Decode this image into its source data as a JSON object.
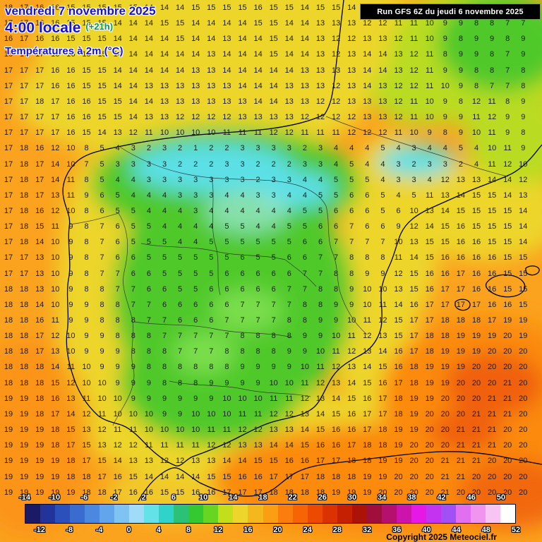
{
  "header": {
    "date": "vendredi 7 novembre 2025",
    "time": "4:00 locale",
    "offset": "(+21h)",
    "parameter": "Températures à 2m (°C)",
    "run_info": "Run GFS 6Z du jeudi 6 novembre 2025"
  },
  "footer": {
    "copyright": "Copyright 2025 Meteociel.fr"
  },
  "map": {
    "units": "°C",
    "palette": {
      "orange": "#FBA21E",
      "deeporange": "#FB8A10",
      "redorange": "#F0600A",
      "yellow": "#EDD52C",
      "yellowgreen": "#B9DC22",
      "green": "#4FC92C",
      "brightgreen": "#7ADE4C",
      "cyan": "#5BE0E6",
      "palecyan": "#9FE9E0",
      "coastline": "#000000",
      "border": "#222222"
    }
  },
  "grid": {
    "cols": 34,
    "rows": [
      "18 17 16 16 15 15 15 15 15 14 14 14 15 15 15 15 16 15 15 14 15 15 14 13 13 12 12 11 10 9 9 8 8 8",
      "17 17 16 16 15 15 15 14 14 14 15 15 14 14 14 14 15 15 14 14 13 13 13 12 12 11 11 10 9 9 8 8 7 7",
      "16 17 16 16 15 15 15 14 14 14 14 15 14 14 13 14 14 15 14 14 13 12 12 13 13 12 11 10 9 8 9 9 8 9",
      "16 17 17 16 16 15 15 14 14 14 14 14 14 13 14 14 14 15 14 14 13 12 13 14 14 13 12 11 8 9 9 8 7 9",
      "17 17 17 16 16 15 15 14 14 14 14 14 13 13 14 14 14 14 14 13 13 13 13 14 14 13 12 11 9 9 8 8 7 8",
      "17 17 17 16 16 15 15 14 14 13 13 13 13 13 13 14 14 14 13 13 13 12 13 14 13 12 12 11 10 9 8 7 7 8",
      "17 17 18 17 16 16 15 15 14 14 13 13 13 13 13 13 14 14 13 13 12 12 13 13 13 12 11 10 9 8 12 11 8 9",
      "17 17 17 17 16 16 15 15 14 13 13 12 12 12 12 13 13 13 13 12 12 12 12 13 13 12 11 10 9 9 11 12 9 9",
      "17 17 17 17 16 15 14 13 12 11 10 10 10 10 11 11 11 12 12 11 11 11 12 12 12 11 10 9 8 9 10 11 9 8",
      "17 18 16 12 10 8 5 4 3 2 3 2 1 2 2 3 3 3 3 2 3 4 4 4 5 4 3 4 4 5 4 10 11 9",
      "17 18 17 14 10 7 5 3 3 3 3 2 2 2 3 3 2 2 2 3 3 4 5 4 4 3 2 3 3 2 4 11 12 10",
      "17 18 17 14 11 8 5 4 4 3 3 3 3 3 3 3 2 3 3 4 4 5 5 5 4 3 3 4 12 13 13 14 14 12",
      "17 18 17 13 11 9 6 5 4 4 4 3 3 3 4 4 3 3 4 4 5 5 6 6 5 4 5 11 13 14 15 15 14 13",
      "17 18 16 12 10 8 6 5 5 4 4 4 3 4 4 4 4 4 4 5 5 6 6 6 5 6 10 13 14 15 15 15 15 14",
      "17 18 15 11 9 8 7 6 5 5 4 4 4 4 5 5 4 4 5 5 6 6 7 6 6 9 12 14 15 16 15 15 15 14",
      "17 18 14 10 9 8 7 6 5 5 5 4 4 5 5 5 5 5 5 6 6 7 7 7 7 10 13 15 15 16 16 15 15 14",
      "17 17 13 10 9 8 7 6 6 5 5 5 5 5 5 6 5 5 6 6 7 7 8 8 8 11 14 15 16 16 16 16 15 15",
      "17 17 13 10 9 8 7 7 6 6 5 5 5 5 6 6 6 6 6 7 7 8 8 9 9 12 15 16 16 17 16 16 15 15",
      "18 18 13 10 9 8 8 7 7 6 6 5 5 6 6 6 6 6 7 7 8 8 9 10 10 13 15 16 17 17 16 16 15 15",
      "18 18 14 10 9 9 8 8 7 7 6 6 6 6 6 7 7 7 7 8 8 9 9 10 11 14 16 17 17 17 17 16 16 15",
      "18 18 16 11 9 9 8 8 8 7 7 6 6 6 7 7 7 7 8 8 9 9 10 11 12 15 17 17 18 18 18 17 19 19",
      "18 18 17 12 10 9 9 8 8 8 7 7 7 7 7 8 8 8 8 9 9 10 11 12 13 15 17 18 18 19 19 19 20 19",
      "18 18 17 13 10 9 9 9 8 8 8 7 7 7 8 8 8 8 9 9 10 11 12 13 14 16 17 18 19 19 19 20 20 20",
      "18 18 18 14 11 10 9 9 9 8 8 8 8 8 8 9 9 9 9 10 11 12 13 14 15 16 18 19 19 19 20 20 20 20",
      "18 18 18 15 12 10 10 9 9 9 8 8 8 9 9 9 9 10 10 11 12 13 14 15 16 17 18 19 19 20 20 20 21 20",
      "19 19 18 16 13 11 10 10 9 9 9 9 9 9 10 10 10 11 11 12 13 14 15 16 17 18 19 19 20 20 20 21 21 20",
      "19 19 18 17 14 12 11 10 10 10 9 9 10 10 10 11 11 12 12 13 14 15 16 17 17 18 19 20 20 20 21 21 21 20",
      "19 19 19 18 15 13 12 11 11 10 10 10 10 11 11 12 12 13 13 14 15 16 16 17 18 19 19 20 20 21 21 21 20 20",
      "19 19 19 18 17 15 13 12 12 11 11 11 11 12 12 13 13 14 14 15 16 16 17 18 18 19 20 20 20 21 21 21 20 20",
      "19 19 19 19 18 17 15 14 13 13 12 12 13 13 14 14 15 15 16 16 17 17 18 18 19 19 20 20 21 21 21 20 20 20",
      "19 19 19 19 18 18 17 16 15 14 14 14 14 15 15 16 16 17 17 17 18 18 18 19 19 20 20 20 21 21 20 20 20 20",
      "19 19 19 19 19 18 18 17 16 16 15 15 16 16 17 17 17 18 18 18 18 19 19 19 20 20 20 20 21 20 20 20 20 20"
    ]
  },
  "scale": {
    "min": -14,
    "max": 52,
    "step": 2,
    "segment_colors": [
      "#1A1A66",
      "#223399",
      "#2B50BB",
      "#3A6CD0",
      "#4D88E0",
      "#63A5EC",
      "#7FC3F2",
      "#A0DCF8",
      "#63E2E8",
      "#2FD3C8",
      "#2BC277",
      "#35C931",
      "#66D622",
      "#C3DF1C",
      "#EDD52C",
      "#F4B81E",
      "#FB9E14",
      "#FB7E0C",
      "#F66406",
      "#EC4A03",
      "#DC3202",
      "#C62002",
      "#AC1208",
      "#A00E3C",
      "#B5106E",
      "#CC14AC",
      "#E618E6",
      "#C434F0",
      "#A050F4",
      "#E070F0",
      "#F094F0",
      "#F8C4F4",
      "#FFFFFF"
    ],
    "top_labels": [
      "-14",
      "-10",
      "-6",
      "-2",
      "2",
      "6",
      "10",
      "14",
      "18",
      "22",
      "26",
      "30",
      "34",
      "38",
      "42",
      "46",
      "50"
    ],
    "bottom_labels": [
      "-12",
      "-8",
      "-4",
      "0",
      "4",
      "8",
      "12",
      "16",
      "20",
      "24",
      "28",
      "32",
      "36",
      "40",
      "44",
      "48",
      "52"
    ]
  }
}
